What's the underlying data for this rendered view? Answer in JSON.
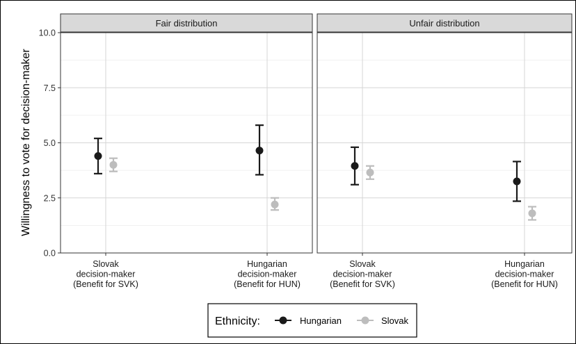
{
  "chart_data": {
    "type": "scatter",
    "ylabel": "Willingness to vote for decision-maker",
    "ylim": [
      0,
      10
    ],
    "yticks": [
      "0.0",
      "2.5",
      "5.0",
      "7.5",
      "10.0"
    ],
    "categories": [
      [
        "Slovak",
        "decision-maker",
        "(Benefit for SVK)"
      ],
      [
        "Hungarian",
        "decision-maker",
        "(Benefit for HUN)"
      ]
    ],
    "facets": [
      "Fair distribution",
      "Unfair distribution"
    ],
    "series": [
      {
        "name": "Hungarian",
        "color": "#1a1a1a",
        "points": [
          {
            "facet": 0,
            "cat": 0,
            "y": 4.4,
            "lo": 3.6,
            "hi": 5.2
          },
          {
            "facet": 0,
            "cat": 1,
            "y": 4.65,
            "lo": 3.55,
            "hi": 5.8
          },
          {
            "facet": 1,
            "cat": 0,
            "y": 3.95,
            "lo": 3.1,
            "hi": 4.8
          },
          {
            "facet": 1,
            "cat": 1,
            "y": 3.25,
            "lo": 2.35,
            "hi": 4.15
          }
        ]
      },
      {
        "name": "Slovak",
        "color": "#bdbdbd",
        "points": [
          {
            "facet": 0,
            "cat": 0,
            "y": 4.0,
            "lo": 3.7,
            "hi": 4.3
          },
          {
            "facet": 0,
            "cat": 1,
            "y": 2.2,
            "lo": 1.95,
            "hi": 2.5
          },
          {
            "facet": 1,
            "cat": 0,
            "y": 3.65,
            "lo": 3.35,
            "hi": 3.95
          },
          {
            "facet": 1,
            "cat": 1,
            "y": 1.8,
            "lo": 1.5,
            "hi": 2.1
          }
        ]
      }
    ],
    "legend": {
      "title": "Ethnicity:",
      "position": "bottom"
    }
  }
}
